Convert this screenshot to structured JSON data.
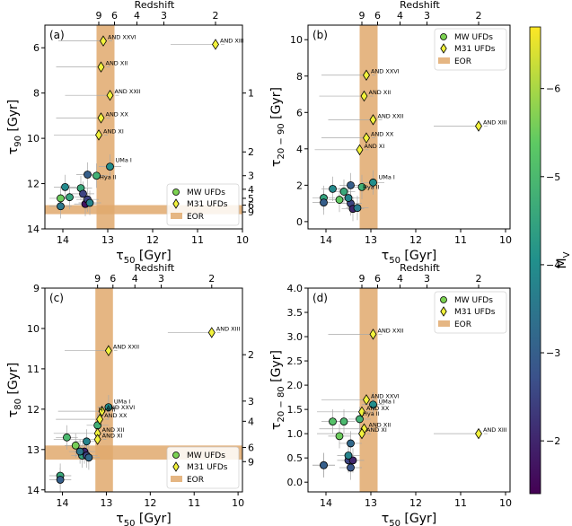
{
  "colorbar": {
    "label": "M_V",
    "label_main": "M",
    "label_sub": "V",
    "ticks": [
      "−6",
      "−5",
      "−4",
      "−3",
      "−2"
    ],
    "tick_values": [
      -6,
      -5,
      -4,
      -3,
      -2
    ],
    "range": [
      -6.7,
      -1.4
    ],
    "colormap_stops": [
      "#440154",
      "#3b528b",
      "#21908c",
      "#5dc963",
      "#fde725"
    ]
  },
  "legend": {
    "mw": "MW UFDs",
    "m31": "M31 UFDs",
    "eor": "EOR"
  },
  "colors": {
    "eor": "#e0a96d",
    "m31_fill": "#f2f23c",
    "errbar": "#a8a8a8"
  },
  "chart_data": [
    {
      "type": "scatter",
      "panel": "(a)",
      "xlabel_main": "τ",
      "xlabel_sub": "50",
      "xlabel_unit": " [Gyr]",
      "ylabel_main": "τ",
      "ylabel_sub": "90",
      "ylabel_unit": " [Gyr]",
      "top_label": "Redshift",
      "xlim": [
        14.4,
        10.0
      ],
      "ylim": [
        14.0,
        5.0
      ],
      "y_inverted": true,
      "xticks": [
        "14",
        "13",
        "12",
        "11",
        "10"
      ],
      "xtick_values": [
        14,
        13,
        12,
        11,
        10
      ],
      "yticks": [
        "6",
        "8",
        "10",
        "12",
        "14"
      ],
      "ytick_values": [
        6,
        8,
        10,
        12,
        14
      ],
      "redshift_ticks": [
        "9",
        "6",
        "4",
        "3",
        "2"
      ],
      "redshift_x": [
        13.2,
        12.85,
        12.35,
        11.75,
        10.6
      ],
      "right_ticks": [
        "1",
        "2",
        "3",
        "4",
        "5",
        "6",
        "9"
      ],
      "right_y": [
        8.0,
        10.6,
        11.65,
        12.25,
        12.65,
        12.95,
        13.25
      ],
      "eor": {
        "x": [
          13.25,
          12.85
        ],
        "y": [
          12.95,
          13.35
        ]
      },
      "legend_position": "lower-right",
      "mw": [
        {
          "x": 14.05,
          "y": 12.65,
          "mv": -5.5
        },
        {
          "x": 13.95,
          "y": 12.15,
          "mv": -3.9
        },
        {
          "x": 13.85,
          "y": 12.6,
          "mv": -4.5
        },
        {
          "x": 13.6,
          "y": 12.2,
          "mv": -4.6
        },
        {
          "x": 13.55,
          "y": 12.45,
          "mv": -2.5
        },
        {
          "x": 13.5,
          "y": 12.9,
          "mv": -1.7
        },
        {
          "x": 13.45,
          "y": 11.6,
          "mv": -3.0
        },
        {
          "x": 13.45,
          "y": 12.7,
          "mv": -2.5
        },
        {
          "x": 13.4,
          "y": 12.85,
          "mv": -3.8
        },
        {
          "x": 13.25,
          "y": 11.65,
          "mv": -4.8
        },
        {
          "x": 12.95,
          "y": 11.25,
          "mv": -4.0
        },
        {
          "x": 14.05,
          "y": 13.0,
          "mv": -3.5
        }
      ],
      "m31": [
        {
          "x": 13.1,
          "y": 5.7,
          "name": "AND XXVI"
        },
        {
          "x": 13.15,
          "y": 6.85,
          "name": "AND XII"
        },
        {
          "x": 12.95,
          "y": 8.1,
          "name": "AND XXII"
        },
        {
          "x": 13.15,
          "y": 9.1,
          "name": "AND XX"
        },
        {
          "x": 13.2,
          "y": 9.85,
          "name": "AND XI"
        },
        {
          "x": 10.6,
          "y": 5.85,
          "name": "AND XIII"
        }
      ],
      "labels": [
        {
          "x": 12.95,
          "y": 11.2,
          "text": "UMa I"
        },
        {
          "x": 13.3,
          "y": 11.95,
          "text": "Hya II"
        }
      ]
    },
    {
      "type": "scatter",
      "panel": "(b)",
      "xlabel_main": "τ",
      "xlabel_sub": "50",
      "xlabel_unit": " [Gyr]",
      "ylabel_main": "τ",
      "ylabel_sub": "20 − 90",
      "ylabel_unit": " [Gyr]",
      "top_label": "Redshift",
      "xlim": [
        14.4,
        9.9
      ],
      "ylim": [
        -0.4,
        10.8
      ],
      "y_inverted": false,
      "xticks": [
        "14",
        "13",
        "12",
        "11",
        "10"
      ],
      "xtick_values": [
        14,
        13,
        12,
        11,
        10
      ],
      "yticks": [
        "0",
        "2",
        "4",
        "6",
        "8",
        "10"
      ],
      "ytick_values": [
        0,
        2,
        4,
        6,
        8,
        10
      ],
      "redshift_ticks": [
        "9",
        "6",
        "4",
        "3",
        "2"
      ],
      "redshift_x": [
        13.2,
        12.85,
        12.35,
        11.75,
        10.6
      ],
      "eor": {
        "x": [
          13.25,
          12.85
        ],
        "y": null
      },
      "legend_position": "upper-right",
      "mw": [
        {
          "x": 14.05,
          "y": 1.3,
          "mv": -4.5
        },
        {
          "x": 14.05,
          "y": 1.05,
          "mv": -3.0
        },
        {
          "x": 13.85,
          "y": 1.8,
          "mv": -3.9
        },
        {
          "x": 13.7,
          "y": 1.2,
          "mv": -5.4
        },
        {
          "x": 13.6,
          "y": 1.65,
          "mv": -4.6
        },
        {
          "x": 13.45,
          "y": 2.0,
          "mv": -3.0
        },
        {
          "x": 13.45,
          "y": 1.0,
          "mv": -2.5
        },
        {
          "x": 13.4,
          "y": 0.7,
          "mv": -2.0
        },
        {
          "x": 13.3,
          "y": 0.75,
          "mv": -3.6
        },
        {
          "x": 13.2,
          "y": 1.9,
          "mv": -4.8
        },
        {
          "x": 12.95,
          "y": 2.15,
          "mv": -4.0
        },
        {
          "x": 13.5,
          "y": 1.3,
          "mv": -3.8
        }
      ],
      "m31": [
        {
          "x": 13.1,
          "y": 8.05,
          "name": "AND XXVI"
        },
        {
          "x": 13.15,
          "y": 6.9,
          "name": "AND XII"
        },
        {
          "x": 12.95,
          "y": 5.6,
          "name": "AND XXII"
        },
        {
          "x": 13.1,
          "y": 4.6,
          "name": "AND XX"
        },
        {
          "x": 13.25,
          "y": 3.95,
          "name": "AND XI"
        },
        {
          "x": 10.6,
          "y": 5.25,
          "name": "AND XIII"
        }
      ],
      "labels": [
        {
          "x": 12.95,
          "y": 2.15,
          "text": "UMa I"
        },
        {
          "x": 13.3,
          "y": 1.6,
          "text": "Hya II"
        }
      ]
    },
    {
      "type": "scatter",
      "panel": "(c)",
      "xlabel_main": "τ",
      "xlabel_sub": "50",
      "xlabel_unit": " [Gyr]",
      "ylabel_main": "τ",
      "ylabel_sub": "80",
      "ylabel_unit": " [Gyr]",
      "top_label": "Redshift",
      "xlim": [
        14.4,
        9.9
      ],
      "ylim": [
        14.05,
        9.0
      ],
      "y_inverted": true,
      "xticks": [
        "14",
        "13",
        "12",
        "11",
        "10"
      ],
      "xtick_values": [
        14,
        13,
        12,
        11,
        10
      ],
      "yticks": [
        "9",
        "10",
        "11",
        "12",
        "13",
        "14"
      ],
      "ytick_values": [
        9,
        10,
        11,
        12,
        13,
        14
      ],
      "redshift_ticks": [
        "9",
        "6",
        "4",
        "3",
        "2"
      ],
      "redshift_x": [
        13.2,
        12.85,
        12.35,
        11.75,
        10.6
      ],
      "right_ticks": [
        "2",
        "3",
        "4",
        "6",
        "9"
      ],
      "right_y": [
        10.65,
        11.8,
        12.3,
        12.95,
        13.3
      ],
      "eor": {
        "x": [
          13.25,
          12.85
        ],
        "y": [
          12.9,
          13.25
        ]
      },
      "legend_position": "lower-right",
      "mw": [
        {
          "x": 14.05,
          "y": 13.65,
          "mv": -4.6
        },
        {
          "x": 14.05,
          "y": 13.75,
          "mv": -3.0
        },
        {
          "x": 13.9,
          "y": 12.7,
          "mv": -5.0
        },
        {
          "x": 13.7,
          "y": 12.9,
          "mv": -5.6
        },
        {
          "x": 13.55,
          "y": 13.15,
          "mv": -4.5
        },
        {
          "x": 13.5,
          "y": 13.05,
          "mv": -2.0
        },
        {
          "x": 13.45,
          "y": 12.8,
          "mv": -3.8
        },
        {
          "x": 13.45,
          "y": 13.15,
          "mv": -2.5
        },
        {
          "x": 13.4,
          "y": 13.2,
          "mv": -3.2
        },
        {
          "x": 13.2,
          "y": 12.4,
          "mv": -4.8
        },
        {
          "x": 12.95,
          "y": 11.95,
          "mv": -4.0
        },
        {
          "x": 13.6,
          "y": 13.05,
          "mv": -3.5
        }
      ],
      "m31": [
        {
          "x": 12.95,
          "y": 10.55,
          "name": "AND XXII"
        },
        {
          "x": 10.6,
          "y": 10.1,
          "name": "AND XIII"
        },
        {
          "x": 13.1,
          "y": 12.05,
          "name": "AND XXVI"
        },
        {
          "x": 13.15,
          "y": 12.25,
          "name": "AND XX"
        },
        {
          "x": 13.2,
          "y": 12.6,
          "name": "AND XII"
        },
        {
          "x": 13.2,
          "y": 12.75,
          "name": "AND XI"
        }
      ],
      "labels": [
        {
          "x": 12.95,
          "y": 11.95,
          "text": "UMa I"
        },
        {
          "x": 13.3,
          "y": 12.15,
          "text": "Hya II"
        }
      ]
    },
    {
      "type": "scatter",
      "panel": "(d)",
      "xlabel_main": "τ",
      "xlabel_sub": "50",
      "xlabel_unit": " [Gyr]",
      "ylabel_main": "τ",
      "ylabel_sub": "20 − 80",
      "ylabel_unit": " [Gyr]",
      "top_label": "Redshift",
      "xlim": [
        14.4,
        9.9
      ],
      "ylim": [
        -0.2,
        4.0
      ],
      "y_inverted": false,
      "xticks": [
        "14",
        "13",
        "12",
        "11",
        "10"
      ],
      "xtick_values": [
        14,
        13,
        12,
        11,
        10
      ],
      "yticks": [
        "0.0",
        "0.5",
        "1.0",
        "1.5",
        "2.0",
        "2.5",
        "3.0",
        "3.5",
        "4.0"
      ],
      "ytick_values": [
        0,
        0.5,
        1,
        1.5,
        2,
        2.5,
        3,
        3.5,
        4
      ],
      "redshift_ticks": [
        "9",
        "6",
        "4",
        "3",
        "2"
      ],
      "redshift_x": [
        13.2,
        12.85,
        12.35,
        11.75,
        10.6
      ],
      "eor": {
        "x": [
          13.25,
          12.85
        ],
        "y": null
      },
      "legend_position": "upper-right",
      "mw": [
        {
          "x": 14.05,
          "y": 0.35,
          "mv": -4.6
        },
        {
          "x": 13.85,
          "y": 1.25,
          "mv": -5.2
        },
        {
          "x": 13.7,
          "y": 0.95,
          "mv": -5.5
        },
        {
          "x": 13.6,
          "y": 1.25,
          "mv": -5.0
        },
        {
          "x": 13.5,
          "y": 0.45,
          "mv": -2.5
        },
        {
          "x": 13.45,
          "y": 0.3,
          "mv": -2.8
        },
        {
          "x": 13.45,
          "y": 0.8,
          "mv": -3.2
        },
        {
          "x": 13.4,
          "y": 0.45,
          "mv": -2.0
        },
        {
          "x": 13.25,
          "y": 1.3,
          "mv": -4.8
        },
        {
          "x": 12.95,
          "y": 1.6,
          "mv": -4.0
        },
        {
          "x": 14.05,
          "y": 0.35,
          "mv": -3.0
        },
        {
          "x": 13.5,
          "y": 0.55,
          "mv": -3.8
        }
      ],
      "m31": [
        {
          "x": 12.95,
          "y": 3.05,
          "name": "AND XXII"
        },
        {
          "x": 13.1,
          "y": 1.7,
          "name": "AND XXVI"
        },
        {
          "x": 13.2,
          "y": 1.45,
          "name": "AND XX"
        },
        {
          "x": 13.15,
          "y": 1.1,
          "name": "AND XII"
        },
        {
          "x": 13.2,
          "y": 1.0,
          "name": "AND XI"
        },
        {
          "x": 10.6,
          "y": 1.0,
          "name": "AND XIII"
        }
      ],
      "labels": [
        {
          "x": 12.95,
          "y": 1.55,
          "text": "UMa I"
        },
        {
          "x": 13.3,
          "y": 1.3,
          "text": "Hya II"
        }
      ]
    }
  ]
}
